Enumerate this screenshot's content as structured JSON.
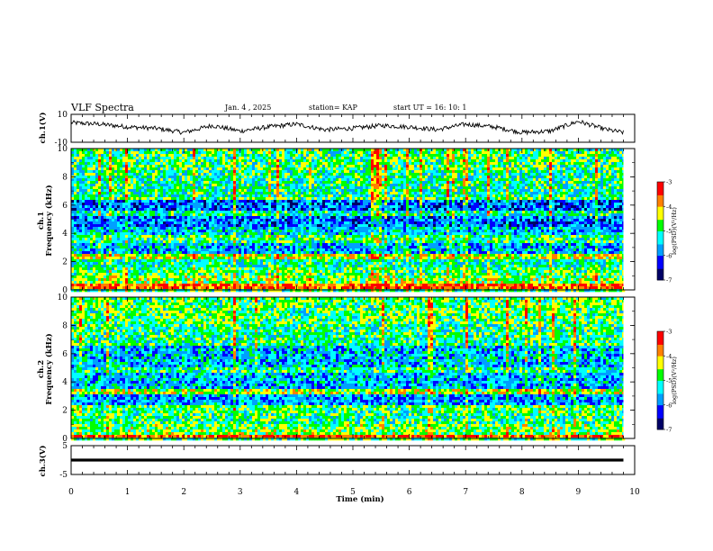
{
  "header": {
    "title": "VLF Spectra",
    "date": "Jan. 4 , 2025",
    "station": "station= KAP",
    "start": "start UT =  16: 10: 1"
  },
  "x_axis": {
    "label": "Time  (min)",
    "range": [
      0,
      10
    ],
    "tick_labels": [
      "0",
      "1",
      "2",
      "3",
      "4",
      "5",
      "6",
      "7",
      "8",
      "9",
      "10"
    ]
  },
  "panels": {
    "ch1_wave": {
      "ylabel": "ch.1(V)",
      "ticks": [
        "10",
        "-10"
      ],
      "range": [
        -10,
        10
      ]
    },
    "ch1_spec": {
      "ylabel_line1": "ch.1",
      "ylabel_line2": "Frequency  (kHz)",
      "ticks": [
        "0",
        "2",
        "4",
        "6",
        "8",
        "10"
      ],
      "range": [
        0,
        10
      ]
    },
    "ch2_spec": {
      "ylabel_line1": "ch.2",
      "ylabel_line2": "Frequency  (kHz)",
      "ticks": [
        "0",
        "2",
        "4",
        "6",
        "8",
        "10"
      ],
      "range": [
        0,
        10
      ]
    },
    "ch3_wave": {
      "ylabel": "ch.3(V)",
      "ticks": [
        "5",
        "-5"
      ],
      "range": [
        -5,
        5
      ]
    }
  },
  "colorbar": {
    "label": "log(PSD)(V²/Hz)",
    "ticks": [
      "-3",
      "-4",
      "-5",
      "-6",
      "-7"
    ],
    "range": [
      -7,
      -3
    ],
    "colors": [
      "#000066",
      "#0000ff",
      "#00a0ff",
      "#00ffff",
      "#00ff00",
      "#ffff00",
      "#ff8000",
      "#ff0000",
      "#ffffff"
    ]
  },
  "chart_data": [
    {
      "type": "line",
      "ylabel": "ch.1(V)",
      "ylim": [
        -10,
        10
      ],
      "xlim": [
        0,
        9.8
      ],
      "x": [
        0,
        0.5,
        1.0,
        1.5,
        2.0,
        2.5,
        3.0,
        3.5,
        4.0,
        4.5,
        5.0,
        5.5,
        6.0,
        6.5,
        7.0,
        7.5,
        8.0,
        8.5,
        9.0,
        9.5,
        9.8
      ],
      "y": [
        4,
        3,
        1,
        0,
        -3,
        2,
        -2,
        1,
        3,
        -1,
        0,
        2,
        1,
        -1,
        3,
        1,
        -3,
        -2,
        5,
        -1,
        -3
      ]
    },
    {
      "type": "heatmap",
      "ylabel": "ch.1 Frequency (kHz)",
      "xlim": [
        0,
        9.8
      ],
      "ylim": [
        0,
        10
      ],
      "value_range": [
        -7,
        -3
      ],
      "bands_khz": [
        {
          "f_min": 0.0,
          "f_max": 0.4,
          "level": -3.6
        },
        {
          "f_min": 0.4,
          "f_max": 1.0,
          "level": -4.6
        },
        {
          "f_min": 1.0,
          "f_max": 1.6,
          "level": -4.8
        },
        {
          "f_min": 1.6,
          "f_max": 2.2,
          "level": -5.2
        },
        {
          "f_min": 2.2,
          "f_max": 2.5,
          "level": -4.3
        },
        {
          "f_min": 2.5,
          "f_max": 3.4,
          "level": -5.6
        },
        {
          "f_min": 3.4,
          "f_max": 3.8,
          "level": -5.0
        },
        {
          "f_min": 3.8,
          "f_max": 4.4,
          "level": -5.5
        },
        {
          "f_min": 4.4,
          "f_max": 5.2,
          "level": -5.9
        },
        {
          "f_min": 5.2,
          "f_max": 5.6,
          "level": -5.2
        },
        {
          "f_min": 5.6,
          "f_max": 6.3,
          "level": -6.0
        },
        {
          "f_min": 6.3,
          "f_max": 6.6,
          "level": -4.8
        },
        {
          "f_min": 6.6,
          "f_max": 8.5,
          "level": -5.1
        },
        {
          "f_min": 8.5,
          "f_max": 10.0,
          "level": -4.9
        }
      ]
    },
    {
      "type": "heatmap",
      "ylabel": "ch.2 Frequency (kHz)",
      "xlim": [
        0,
        9.8
      ],
      "ylim": [
        0,
        10
      ],
      "value_range": [
        -7,
        -3
      ],
      "bands_khz": [
        {
          "f_min": 0.0,
          "f_max": 0.3,
          "level": -3.5
        },
        {
          "f_min": 0.3,
          "f_max": 1.0,
          "level": -4.7
        },
        {
          "f_min": 1.0,
          "f_max": 1.8,
          "level": -5.0
        },
        {
          "f_min": 1.8,
          "f_max": 2.3,
          "level": -4.8
        },
        {
          "f_min": 2.3,
          "f_max": 3.2,
          "level": -5.7
        },
        {
          "f_min": 3.2,
          "f_max": 3.5,
          "level": -4.4
        },
        {
          "f_min": 3.5,
          "f_max": 4.6,
          "level": -5.6
        },
        {
          "f_min": 4.6,
          "f_max": 5.0,
          "level": -5.0
        },
        {
          "f_min": 5.0,
          "f_max": 6.5,
          "level": -5.5
        },
        {
          "f_min": 6.5,
          "f_max": 8.0,
          "level": -5.0
        },
        {
          "f_min": 8.0,
          "f_max": 10.0,
          "level": -4.8
        }
      ]
    },
    {
      "type": "line",
      "ylabel": "ch.3(V)",
      "ylim": [
        -5,
        5
      ],
      "xlim": [
        0,
        9.8
      ],
      "x": [
        0,
        9.8
      ],
      "y": [
        0,
        0
      ],
      "note_band_amplitude": 0.5
    }
  ]
}
